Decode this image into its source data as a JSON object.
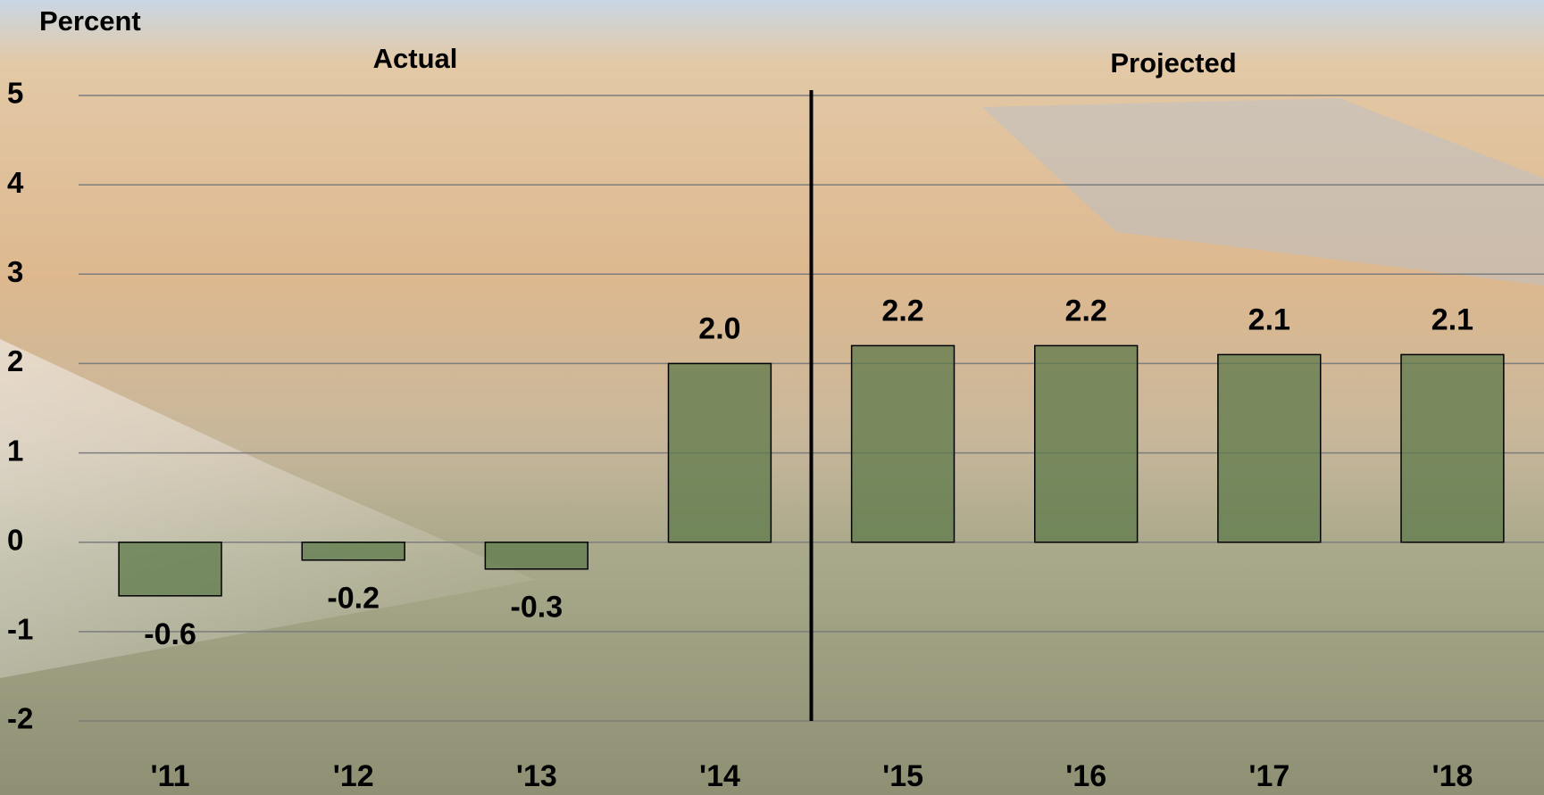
{
  "chart_data": {
    "type": "bar",
    "y_label": "Percent",
    "annotations": [
      "Actual",
      "Projected"
    ],
    "categories": [
      "'11",
      "'12",
      "'13",
      "'14",
      "'15",
      "'16",
      "'17",
      "'18"
    ],
    "values": [
      -0.6,
      -0.2,
      -0.3,
      2.0,
      2.2,
      2.2,
      2.1,
      2.1
    ],
    "value_labels": [
      "-0.6",
      "-0.2",
      "-0.3",
      "2.0",
      "2.2",
      "2.2",
      "2.1",
      "2.1"
    ],
    "color": "#5d7a4a",
    "ylim": [
      -2,
      5
    ],
    "yticks": [
      -2,
      -1,
      0,
      1,
      2,
      3,
      4,
      5
    ],
    "grid": true
  }
}
